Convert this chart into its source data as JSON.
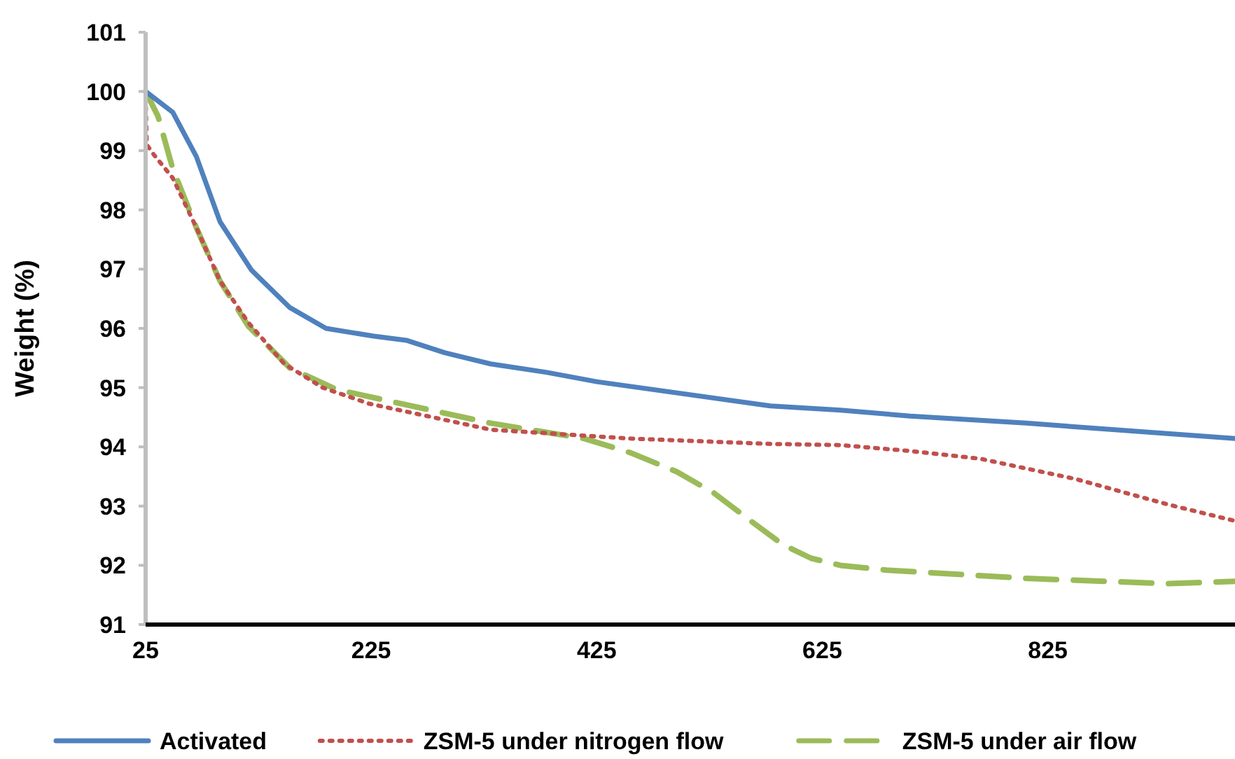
{
  "chart_data": {
    "type": "line",
    "ylabel": "Weight (%)",
    "xlim": [
      25,
      991
    ],
    "xticks": [
      25,
      225,
      425,
      625,
      825
    ],
    "ylim": [
      91,
      101
    ],
    "yticks": [
      91,
      92,
      93,
      94,
      95,
      96,
      97,
      98,
      99,
      100,
      101
    ],
    "grid": false,
    "legend": "bottom",
    "marker": "none",
    "series": [
      {
        "name": "Activated",
        "color": "#4f81bd",
        "line_style": "solid",
        "x": [
          25,
          49,
          70,
          91,
          119,
          153,
          185,
          227,
          256,
          290,
          331,
          380,
          425,
          579,
          641,
          703,
          806,
          991
        ],
        "values": [
          100,
          99.65,
          98.9,
          97.8,
          96.98,
          96.35,
          96.0,
          95.87,
          95.8,
          95.59,
          95.4,
          95.26,
          95.1,
          94.69,
          94.62,
          94.52,
          94.4,
          94.14
        ]
      },
      {
        "name": "ZSM-5 under nitrogen flow",
        "color": "#c0504d",
        "line_style": "dotted",
        "x": [
          25,
          26,
          32,
          49,
          70,
          91,
          116,
          148,
          182,
          223,
          331,
          455,
          579,
          641,
          703,
          765,
          849,
          931,
          991
        ],
        "values": [
          99.9,
          99.1,
          98.94,
          98.54,
          97.7,
          96.8,
          96.1,
          95.4,
          95.0,
          94.73,
          94.29,
          94.14,
          94.05,
          94.03,
          93.93,
          93.8,
          93.46,
          93.03,
          92.75
        ]
      },
      {
        "name": "ZSM-5 under air flow",
        "color": "#9bbb59",
        "line_style": "dashed",
        "x": [
          25,
          36,
          49,
          70,
          91,
          116,
          153,
          194,
          244,
          331,
          414,
          455,
          496,
          529,
          563,
          590,
          615,
          641,
          682,
          806,
          931,
          991
        ],
        "values": [
          100,
          99.58,
          98.7,
          97.7,
          96.8,
          96.04,
          95.33,
          94.97,
          94.76,
          94.4,
          94.14,
          93.9,
          93.58,
          93.22,
          92.73,
          92.35,
          92.12,
          92.0,
          91.92,
          91.78,
          91.69,
          91.73
        ]
      }
    ]
  }
}
